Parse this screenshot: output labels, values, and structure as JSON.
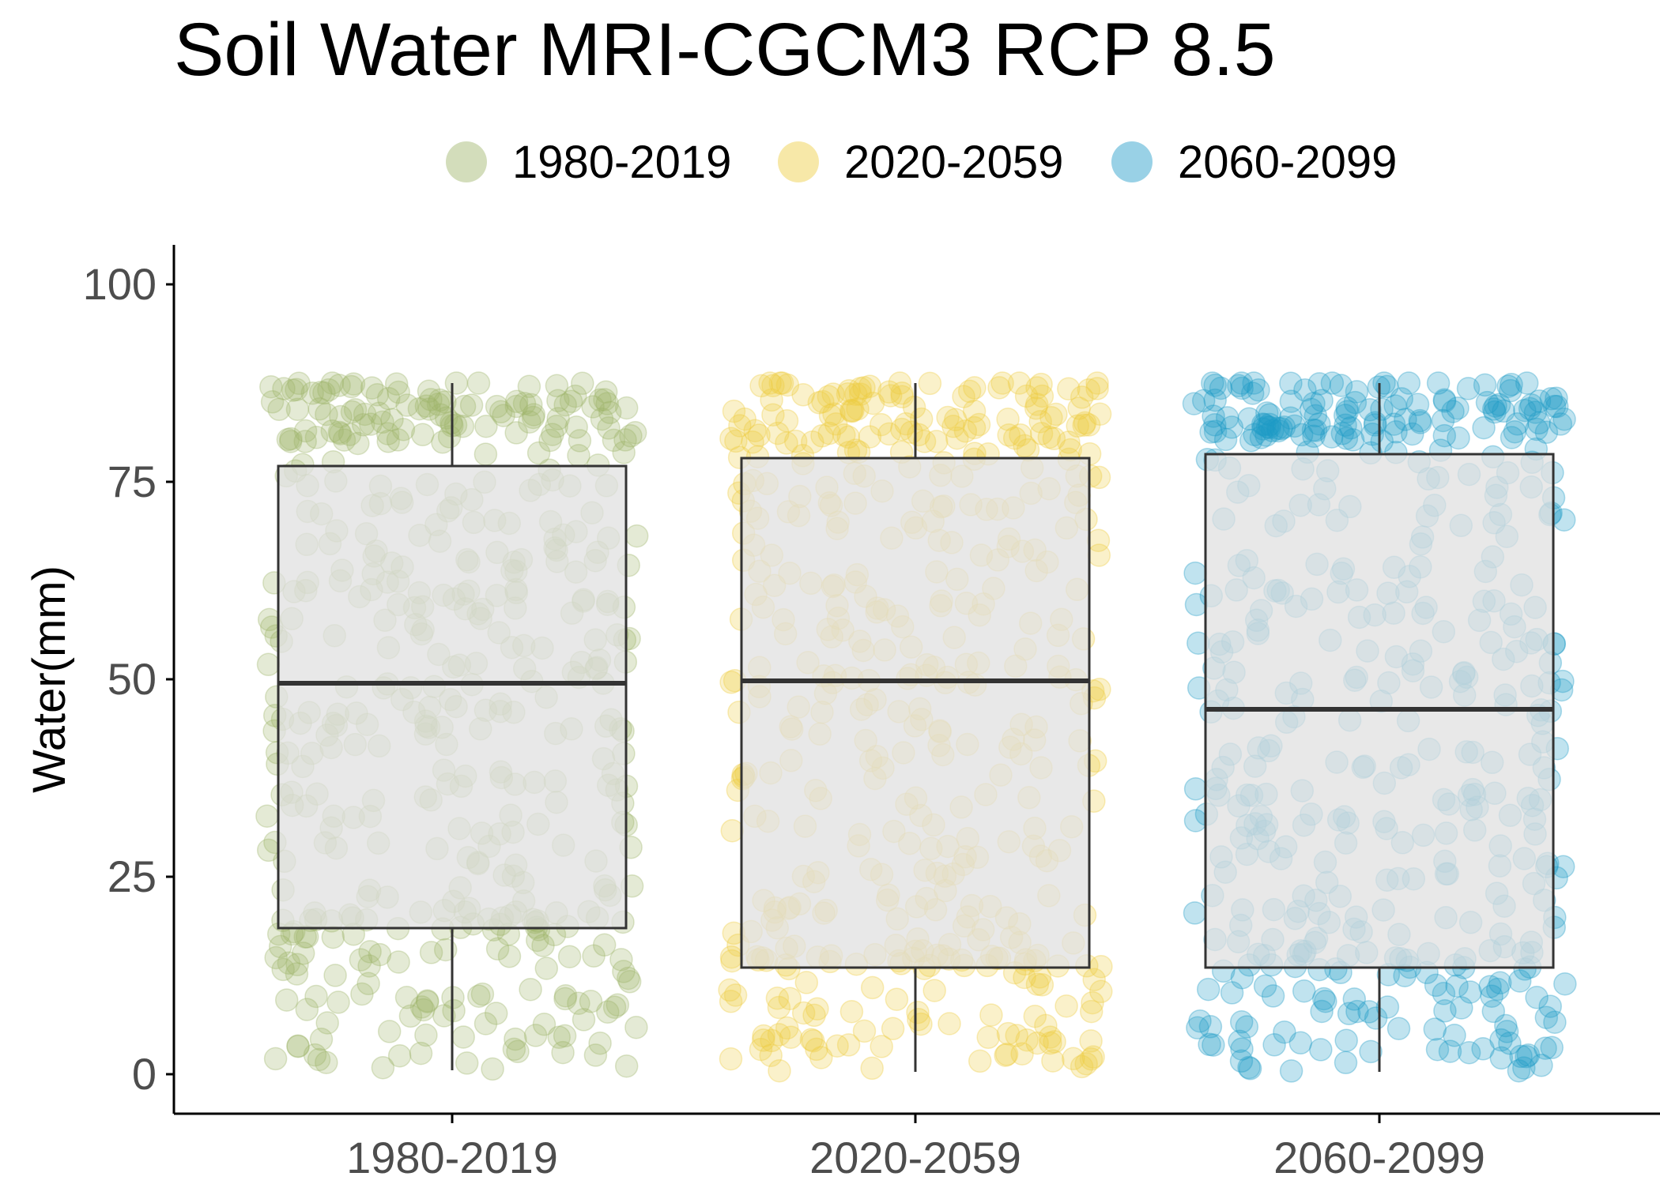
{
  "chart_data": {
    "type": "boxplot",
    "title": "Soil Water MRI-CGCM3 RCP 8.5",
    "xlabel": "",
    "ylabel": "Water(mm)",
    "ylim": [
      -5,
      105
    ],
    "yticks": [
      0,
      25,
      50,
      75,
      100
    ],
    "categories": [
      "1980-2019",
      "2020-2059",
      "2060-2099"
    ],
    "legend": {
      "placement": "top",
      "entries": [
        "1980-2019",
        "2020-2059",
        "2060-2099"
      ]
    },
    "colors": {
      "1980-2019": "#9DB469",
      "2020-2059": "#EDCB3F",
      "2060-2099": "#1D9AC7",
      "box_fill": "#E0E0E0",
      "box_stroke": "#333333"
    },
    "boxes": [
      {
        "name": "1980-2019",
        "min": 0.5,
        "q1": 18.5,
        "median": 49.5,
        "q3": 77,
        "max": 87.5
      },
      {
        "name": "2020-2059",
        "min": 0.3,
        "q1": 13.5,
        "median": 49.8,
        "q3": 78,
        "max": 87.5
      },
      {
        "name": "2060-2099",
        "min": 0.3,
        "q1": 13.5,
        "median": 46.2,
        "q3": 78.5,
        "max": 87.5
      }
    ],
    "grid": false
  }
}
